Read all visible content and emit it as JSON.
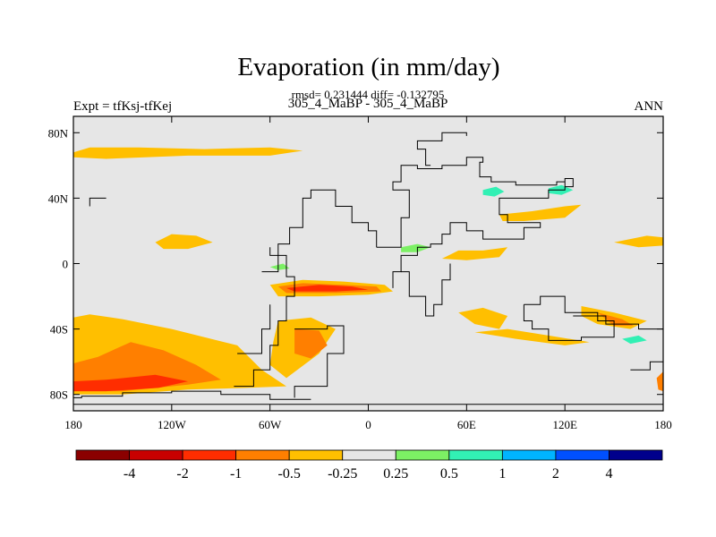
{
  "chart_data": {
    "type": "heatmap",
    "title": "Evaporation (in mm/day)",
    "stats_line": "rmsd= 0.231444 diff= -0.132795",
    "subtitle": "305_4_MaBP - 305_4_MaBP",
    "left_label": "Expt = tfKsj-tfKej",
    "right_label": "ANN",
    "x_axis": {
      "range": [
        -180,
        180
      ],
      "ticks": [
        {
          "value": -180,
          "label": "180"
        },
        {
          "value": -120,
          "label": "120W"
        },
        {
          "value": -60,
          "label": "60W"
        },
        {
          "value": 0,
          "label": "0"
        },
        {
          "value": 60,
          "label": "60E"
        },
        {
          "value": 120,
          "label": "120E"
        },
        {
          "value": 180,
          "label": "180"
        }
      ]
    },
    "y_axis": {
      "range": [
        -90,
        90
      ],
      "ticks": [
        {
          "value": 80,
          "label": "80N"
        },
        {
          "value": 40,
          "label": "40N"
        },
        {
          "value": 0,
          "label": "0"
        },
        {
          "value": -40,
          "label": "40S"
        },
        {
          "value": -80,
          "label": "80S"
        }
      ]
    },
    "colorbar": {
      "colors": [
        "#8b0000",
        "#c80000",
        "#ff2d00",
        "#ff7f00",
        "#ffbf00",
        "#e6e6e6",
        "#7cf064",
        "#32f0b4",
        "#00b4ff",
        "#0050ff",
        "#00008c"
      ],
      "labels": [
        "-4",
        "-2",
        "-1",
        "-0.5",
        "-0.25",
        "0.25",
        "0.5",
        "1",
        "2",
        "4"
      ]
    },
    "background_color": "#e6e6e6",
    "coastline_color": "#000000",
    "regions": [
      {
        "level": "-0.25",
        "color": "#ffbf00",
        "points": [
          [
            -180,
            68
          ],
          [
            -170,
            71
          ],
          [
            -140,
            71
          ],
          [
            -100,
            70
          ],
          [
            -60,
            71
          ],
          [
            -40,
            69
          ],
          [
            -60,
            66
          ],
          [
            -110,
            66
          ],
          [
            -160,
            64
          ],
          [
            -180,
            65
          ]
        ]
      },
      {
        "level": "-0.25",
        "color": "#ffbf00",
        "points": [
          [
            -130,
            13
          ],
          [
            -120,
            18
          ],
          [
            -105,
            17
          ],
          [
            -95,
            13
          ],
          [
            -110,
            9
          ],
          [
            -125,
            9
          ]
        ]
      },
      {
        "level": "-0.25",
        "color": "#ffbf00",
        "points": [
          [
            -180,
            -33
          ],
          [
            -170,
            -31
          ],
          [
            -150,
            -34
          ],
          [
            -120,
            -40
          ],
          [
            -100,
            -45
          ],
          [
            -80,
            -50
          ],
          [
            -65,
            -65
          ],
          [
            -50,
            -75
          ],
          [
            -75,
            -76
          ],
          [
            -110,
            -77
          ],
          [
            -150,
            -80
          ],
          [
            -180,
            -80
          ]
        ]
      },
      {
        "level": "-0.5",
        "color": "#ff7f00",
        "points": [
          [
            -180,
            -61
          ],
          [
            -165,
            -57
          ],
          [
            -145,
            -48
          ],
          [
            -125,
            -53
          ],
          [
            -105,
            -62
          ],
          [
            -90,
            -71
          ],
          [
            -110,
            -74
          ],
          [
            -150,
            -78
          ],
          [
            -180,
            -78
          ]
        ]
      },
      {
        "level": "-1",
        "color": "#ff2d00",
        "points": [
          [
            -180,
            -72
          ],
          [
            -160,
            -71
          ],
          [
            -130,
            -68
          ],
          [
            -110,
            -72
          ],
          [
            -128,
            -76
          ],
          [
            -160,
            -78
          ],
          [
            -180,
            -78
          ]
        ]
      },
      {
        "level": "-0.25",
        "color": "#ffbf00",
        "points": [
          [
            -60,
            -13
          ],
          [
            -40,
            -10
          ],
          [
            -15,
            -11
          ],
          [
            10,
            -13
          ],
          [
            15,
            -17
          ],
          [
            0,
            -19
          ],
          [
            -30,
            -20
          ],
          [
            -55,
            -20
          ]
        ]
      },
      {
        "level": "-0.5",
        "color": "#ff7f00",
        "points": [
          [
            -55,
            -14
          ],
          [
            -40,
            -12
          ],
          [
            -15,
            -13
          ],
          [
            5,
            -14
          ],
          [
            8,
            -17
          ],
          [
            -20,
            -18
          ],
          [
            -50,
            -18
          ]
        ]
      },
      {
        "level": "-1",
        "color": "#ff2d00",
        "points": [
          [
            -50,
            -15
          ],
          [
            -30,
            -13
          ],
          [
            -10,
            -14
          ],
          [
            0,
            -16
          ],
          [
            -20,
            -17
          ],
          [
            -45,
            -17
          ]
        ]
      },
      {
        "level": "-0.25",
        "color": "#ffbf00",
        "points": [
          [
            -55,
            -35
          ],
          [
            -35,
            -33
          ],
          [
            -20,
            -40
          ],
          [
            -30,
            -55
          ],
          [
            -50,
            -70
          ],
          [
            -60,
            -62
          ],
          [
            -58,
            -48
          ]
        ]
      },
      {
        "level": "-0.5",
        "color": "#ff7f00",
        "points": [
          [
            -45,
            -40
          ],
          [
            -30,
            -41
          ],
          [
            -25,
            -50
          ],
          [
            -35,
            -58
          ],
          [
            -45,
            -55
          ]
        ]
      },
      {
        "level": "-0.25",
        "color": "#ffbf00",
        "points": [
          [
            45,
            3
          ],
          [
            55,
            8
          ],
          [
            70,
            8
          ],
          [
            85,
            10
          ],
          [
            80,
            4
          ],
          [
            60,
            2
          ]
        ]
      },
      {
        "level": "-0.25",
        "color": "#ffbf00",
        "points": [
          [
            80,
            30
          ],
          [
            100,
            32
          ],
          [
            120,
            35
          ],
          [
            130,
            36
          ],
          [
            120,
            28
          ],
          [
            95,
            26
          ],
          [
            82,
            26
          ]
        ]
      },
      {
        "level": "-0.25",
        "color": "#ffbf00",
        "points": [
          [
            150,
            13
          ],
          [
            170,
            17
          ],
          [
            180,
            16
          ],
          [
            180,
            11
          ],
          [
            165,
            10
          ]
        ]
      },
      {
        "level": "-0.25",
        "color": "#ffbf00",
        "points": [
          [
            55,
            -30
          ],
          [
            70,
            -27
          ],
          [
            85,
            -32
          ],
          [
            80,
            -40
          ],
          [
            65,
            -37
          ]
        ]
      },
      {
        "level": "-0.25",
        "color": "#ffbf00",
        "points": [
          [
            65,
            -42
          ],
          [
            90,
            -46
          ],
          [
            120,
            -50
          ],
          [
            135,
            -48
          ],
          [
            110,
            -44
          ],
          [
            85,
            -40
          ]
        ]
      },
      {
        "level": "-0.25",
        "color": "#ffbf00",
        "points": [
          [
            130,
            -26
          ],
          [
            150,
            -30
          ],
          [
            170,
            -35
          ],
          [
            160,
            -40
          ],
          [
            140,
            -37
          ],
          [
            130,
            -32
          ]
        ]
      },
      {
        "level": "-0.5",
        "color": "#ff7f00",
        "points": [
          [
            140,
            -30
          ],
          [
            155,
            -34
          ],
          [
            162,
            -38
          ],
          [
            150,
            -38
          ]
        ]
      },
      {
        "level": "-0.5",
        "color": "#ff7f00",
        "points": [
          [
            176,
            -70
          ],
          [
            180,
            -66
          ],
          [
            180,
            -78
          ],
          [
            177,
            -77
          ]
        ]
      },
      {
        "level": "0.5",
        "color": "#7cf064",
        "points": [
          [
            20,
            10
          ],
          [
            30,
            12
          ],
          [
            38,
            10
          ],
          [
            30,
            7
          ],
          [
            20,
            7
          ]
        ]
      },
      {
        "level": "0.5",
        "color": "#7cf064",
        "points": [
          [
            -60,
            -2
          ],
          [
            -52,
            0
          ],
          [
            -48,
            -3
          ],
          [
            -55,
            -4
          ]
        ]
      },
      {
        "level": "1",
        "color": "#32f0b4",
        "points": [
          [
            70,
            45
          ],
          [
            78,
            47
          ],
          [
            83,
            44
          ],
          [
            77,
            41
          ],
          [
            70,
            42
          ]
        ]
      },
      {
        "level": "1",
        "color": "#32f0b4",
        "points": [
          [
            110,
            46
          ],
          [
            118,
            48
          ],
          [
            125,
            45
          ],
          [
            118,
            42
          ],
          [
            110,
            43
          ]
        ]
      },
      {
        "level": "1",
        "color": "#32f0b4",
        "points": [
          [
            155,
            -46
          ],
          [
            165,
            -44
          ],
          [
            170,
            -47
          ],
          [
            160,
            -49
          ]
        ]
      }
    ],
    "coastlines": [
      [
        [
          -35,
          -83
        ],
        [
          -60,
          -80
        ],
        [
          -90,
          -78
        ],
        [
          -120,
          -79
        ],
        [
          -150,
          -81
        ],
        [
          -175,
          -82
        ],
        [
          -180,
          -83
        ]
      ],
      [
        [
          -180,
          -86
        ],
        [
          180,
          -86
        ]
      ],
      [
        [
          -82,
          -75
        ],
        [
          -70,
          -65
        ],
        [
          -60,
          -50
        ],
        [
          -55,
          -35
        ],
        [
          -50,
          -20
        ],
        [
          -45,
          -8
        ],
        [
          -50,
          5
        ],
        [
          -55,
          12
        ],
        [
          -48,
          22
        ],
        [
          -40,
          40
        ],
        [
          -35,
          45
        ],
        [
          -20,
          35
        ],
        [
          -10,
          25
        ],
        [
          0,
          20
        ],
        [
          5,
          10
        ]
      ],
      [
        [
          -45,
          -40
        ],
        [
          -25,
          -38
        ],
        [
          -15,
          -55
        ],
        [
          -25,
          -75
        ],
        [
          -45,
          -82
        ]
      ],
      [
        [
          -80,
          -55
        ],
        [
          -65,
          -40
        ],
        [
          -60,
          -25
        ]
      ],
      [
        [
          -65,
          -5
        ],
        [
          -55,
          5
        ],
        [
          -60,
          10
        ]
      ],
      [
        [
          5,
          10
        ],
        [
          20,
          28
        ],
        [
          25,
          45
        ],
        [
          15,
          50
        ],
        [
          20,
          60
        ],
        [
          30,
          58
        ],
        [
          45,
          60
        ],
        [
          60,
          65
        ],
        [
          70,
          62
        ],
        [
          68,
          53
        ],
        [
          75,
          50
        ],
        [
          90,
          48
        ],
        [
          115,
          50
        ],
        [
          120,
          47
        ],
        [
          125,
          52
        ],
        [
          120,
          45
        ],
        [
          110,
          40
        ],
        [
          95,
          40
        ],
        [
          80,
          30
        ],
        [
          85,
          25
        ],
        [
          105,
          22
        ],
        [
          95,
          15
        ],
        [
          70,
          20
        ],
        [
          60,
          25
        ],
        [
          50,
          18
        ],
        [
          45,
          12
        ],
        [
          38,
          10
        ],
        [
          30,
          5
        ],
        [
          20,
          -5
        ],
        [
          15,
          -15
        ]
      ],
      [
        [
          20,
          -5
        ],
        [
          25,
          -20
        ],
        [
          35,
          -32
        ],
        [
          40,
          -25
        ],
        [
          45,
          -10
        ],
        [
          50,
          0
        ]
      ],
      [
        [
          38,
          60
        ],
        [
          35,
          70
        ],
        [
          30,
          75
        ],
        [
          45,
          80
        ],
        [
          60,
          78
        ]
      ],
      [
        [
          95,
          -25
        ],
        [
          105,
          -20
        ],
        [
          120,
          -30
        ],
        [
          140,
          -35
        ],
        [
          150,
          -45
        ],
        [
          130,
          -47
        ],
        [
          110,
          -40
        ],
        [
          100,
          -35
        ],
        [
          95,
          -25
        ]
      ],
      [
        [
          125,
          -32
        ],
        [
          145,
          -37
        ],
        [
          165,
          -40
        ],
        [
          180,
          -45
        ]
      ],
      [
        [
          160,
          -65
        ],
        [
          172,
          -60
        ],
        [
          180,
          -62
        ]
      ],
      [
        [
          -160,
          40
        ],
        [
          -170,
          35
        ]
      ]
    ]
  }
}
